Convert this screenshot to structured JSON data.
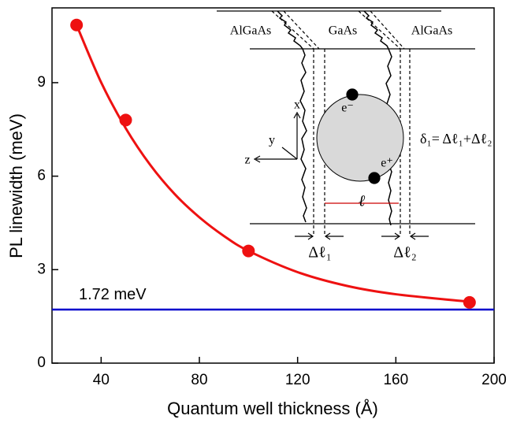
{
  "chart_data": {
    "type": "scatter",
    "x_label": "Quantum well thickness (Å)",
    "y_label": "PL linewidth (meV)",
    "xlim": [
      20,
      200
    ],
    "xticks": [
      40,
      80,
      120,
      160,
      200
    ],
    "ylim": [
      0,
      11.4
    ],
    "yticks": [
      0,
      3,
      6,
      9
    ],
    "series": [
      {
        "x": [
          30,
          50,
          100,
          190
        ],
        "values": [
          10.85,
          7.8,
          3.6,
          1.95
        ],
        "color": "#ee1111",
        "mode": "markers"
      },
      {
        "x": [
          30,
          40,
          50,
          60,
          70,
          80,
          90,
          100,
          120,
          140,
          160,
          190
        ],
        "values": [
          10.85,
          9.01,
          7.54,
          6.36,
          5.42,
          4.68,
          4.08,
          3.6,
          2.92,
          2.48,
          2.21,
          1.97
        ],
        "color": "#ee1111",
        "mode": "line"
      }
    ],
    "hline": {
      "value": 1.72,
      "label": "1.72 meV",
      "color": "#0000cc"
    },
    "inset": {
      "layers": [
        "AlGaAs",
        "GaAs",
        "AlGaAs"
      ],
      "axes": [
        "x",
        "y",
        "z"
      ],
      "electron": "e⁻",
      "hole": "e⁺",
      "formula": "δ₁= Δℓ₁+Δℓ₂",
      "width": "ℓ",
      "delta1": "Δℓ₁",
      "delta2": "Δℓ₂"
    }
  }
}
